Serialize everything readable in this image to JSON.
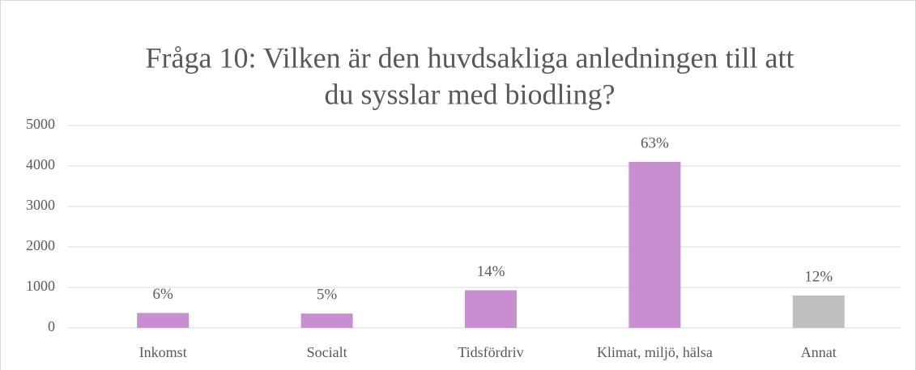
{
  "chart_data": {
    "type": "bar",
    "title": [
      "Fråga 10: Vilken är den huvdsakliga anledningen till att",
      "du sysslar med biodling?"
    ],
    "categories": [
      "Inkomst",
      "Socialt",
      "Tidsfördriv",
      "Klimat, miljö, hälsa",
      "Annat"
    ],
    "values": [
      370,
      355,
      930,
      4100,
      800
    ],
    "data_labels": [
      "6%",
      "5%",
      "14%",
      "63%",
      "12%"
    ],
    "colors": [
      "#c78fd0",
      "#c78fd0",
      "#c78fd0",
      "#c78fd0",
      "#bfbfbf"
    ],
    "ylim": [
      0,
      5000
    ],
    "yticks": [
      0,
      1000,
      2000,
      3000,
      4000,
      5000
    ],
    "grid": true
  }
}
